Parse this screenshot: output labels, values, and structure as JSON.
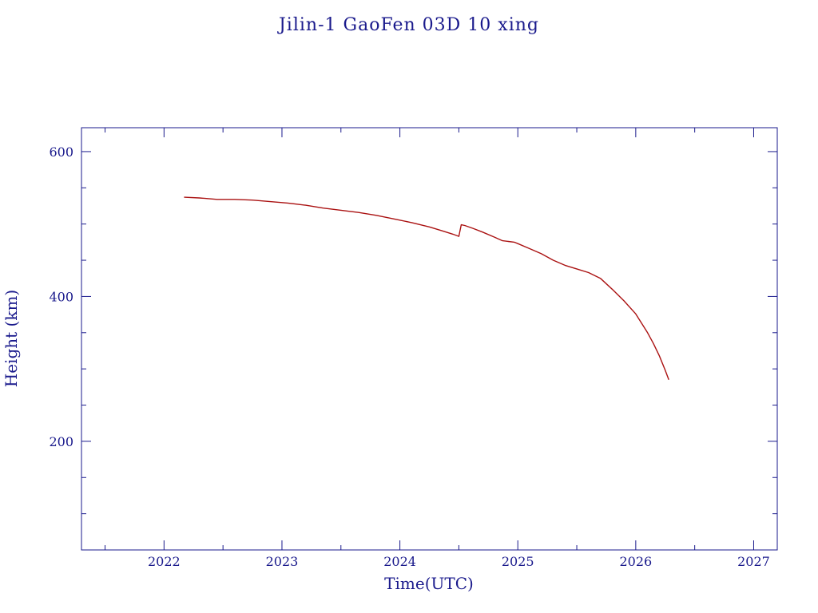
{
  "chart_data": {
    "type": "line",
    "title": "Jilin-1 GaoFen 03D 10 xing",
    "xlabel": "Time(UTC)",
    "ylabel": "Height (km)",
    "xlim": [
      2021.3,
      2027.2
    ],
    "ylim": [
      50,
      633
    ],
    "x_ticks": [
      "2022",
      "2023",
      "2024",
      "2025",
      "2026",
      "2027"
    ],
    "y_ticks": [
      "200",
      "400",
      "600"
    ],
    "grid": false,
    "colors": {
      "axis": "#1a1a8c",
      "series": "#aa1111"
    },
    "series": [
      {
        "x": [
          2022.17,
          2022.3,
          2022.45,
          2022.6,
          2022.75,
          2022.9,
          2023.05,
          2023.2,
          2023.35,
          2023.5,
          2023.65,
          2023.8,
          2023.95,
          2024.1,
          2024.25,
          2024.35,
          2024.45,
          2024.5,
          2024.52,
          2024.55,
          2024.62,
          2024.7,
          2024.8,
          2024.87,
          2024.92,
          2024.97,
          2025.0,
          2025.1,
          2025.2,
          2025.3,
          2025.4,
          2025.5,
          2025.6,
          2025.7,
          2025.8,
          2025.9,
          2026.0,
          2026.05,
          2026.1,
          2026.15,
          2026.2,
          2026.25,
          2026.28
        ],
        "y": [
          537,
          536,
          534,
          534,
          533,
          531,
          529,
          526,
          522,
          519,
          516,
          512,
          507,
          502,
          496,
          491,
          486,
          483,
          499,
          498,
          494,
          489,
          482,
          477,
          476,
          475,
          473,
          466,
          459,
          450,
          443,
          438,
          433,
          425,
          410,
          394,
          376,
          363,
          350,
          335,
          318,
          298,
          285
        ]
      }
    ]
  }
}
